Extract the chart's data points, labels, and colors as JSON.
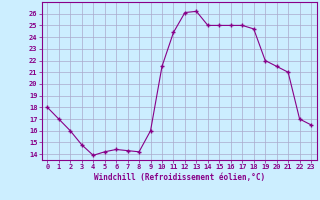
{
  "x": [
    0,
    1,
    2,
    3,
    4,
    5,
    6,
    7,
    8,
    9,
    10,
    11,
    12,
    13,
    14,
    15,
    16,
    17,
    18,
    19,
    20,
    21,
    22,
    23
  ],
  "y": [
    18,
    17,
    16,
    14.8,
    13.9,
    14.2,
    14.4,
    14.3,
    14.2,
    16,
    21.5,
    24.4,
    26.1,
    26.2,
    25,
    25,
    25,
    25,
    24.7,
    22,
    21.5,
    21,
    17,
    16.5
  ],
  "line_color": "#880088",
  "marker_color": "#880088",
  "bg_color": "#cceeff",
  "grid_color": "#aaaacc",
  "xlabel": "Windchill (Refroidissement éolien,°C)",
  "xlim_min": -0.5,
  "xlim_max": 23.5,
  "ylim_min": 13.5,
  "ylim_max": 27.0,
  "yticks": [
    14,
    15,
    16,
    17,
    18,
    19,
    20,
    21,
    22,
    23,
    24,
    25,
    26
  ],
  "xticks": [
    0,
    1,
    2,
    3,
    4,
    5,
    6,
    7,
    8,
    9,
    10,
    11,
    12,
    13,
    14,
    15,
    16,
    17,
    18,
    19,
    20,
    21,
    22,
    23
  ],
  "tick_color": "#880088",
  "spine_color": "#880088",
  "label_fontsize": 5.5,
  "tick_fontsize": 5.0
}
